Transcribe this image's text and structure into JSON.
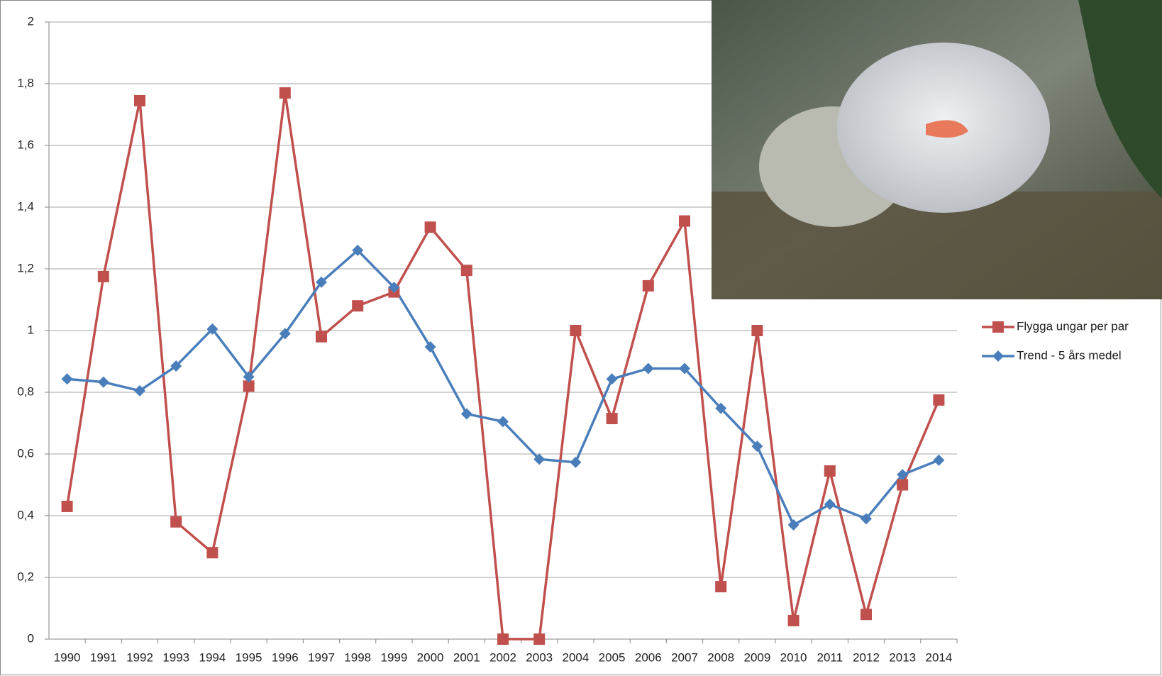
{
  "chart_data": {
    "type": "line",
    "categories": [
      "1990",
      "1991",
      "1992",
      "1993",
      "1994",
      "1995",
      "1996",
      "1997",
      "1998",
      "1999",
      "2000",
      "2001",
      "2002",
      "2003",
      "2004",
      "2005",
      "2006",
      "2007",
      "2008",
      "2009",
      "2010",
      "2011",
      "2012",
      "2013",
      "2014"
    ],
    "series": [
      {
        "name": "Flygga ungar per par",
        "color": "#c0504d",
        "marker": "square",
        "values": [
          0.43,
          1.175,
          1.745,
          0.38,
          0.28,
          0.82,
          1.77,
          0.98,
          1.08,
          1.125,
          1.335,
          1.195,
          0,
          0,
          1.0,
          0.715,
          1.145,
          1.355,
          0.17,
          1.0,
          0.06,
          0.545,
          0.08,
          0.5,
          0.775
        ]
      },
      {
        "name": "Trend - 5 års medel",
        "color": "#4a7ebb",
        "marker": "diamond",
        "values": [
          0.843,
          0.833,
          0.805,
          0.885,
          1.005,
          0.85,
          0.99,
          1.157,
          1.26,
          1.14,
          0.947,
          0.73,
          0.705,
          0.583,
          0.573,
          0.843,
          0.877,
          0.877,
          0.748,
          0.625,
          0.37,
          0.437,
          0.39,
          0.533,
          0.58
        ]
      }
    ],
    "ylim": [
      0,
      2
    ],
    "yticks": [
      0,
      {
        "value": 0.2,
        "label": "0,2"
      },
      {
        "value": 0.4,
        "label": "0,4"
      },
      {
        "value": 0.6,
        "label": "0,6"
      },
      {
        "value": 0.8,
        "label": "0,8"
      },
      1,
      {
        "value": 1.2,
        "label": "1,2"
      },
      {
        "value": 1.4,
        "label": "1,4"
      },
      {
        "value": 1.6,
        "label": "1,6"
      },
      {
        "value": 1.8,
        "label": "1,8"
      },
      2
    ],
    "grid": true,
    "legend": "right"
  }
}
